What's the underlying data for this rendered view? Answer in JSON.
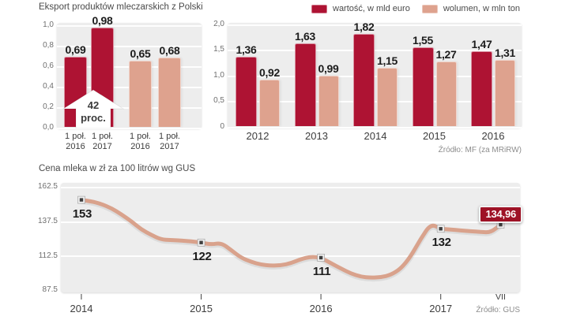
{
  "colors": {
    "value_red": "#ae1333",
    "volume_beige": "#dea28e",
    "line_beige": "#d9a28c",
    "badge_red": "#9e1226",
    "plot_bg": "#ededed"
  },
  "legend": [
    {
      "label": "wartość, w mld euro",
      "color": "#ae1333"
    },
    {
      "label": "wolumen, w mln ton",
      "color": "#dea28e"
    }
  ],
  "chart_data": [
    {
      "type": "bar",
      "title": "Eksport produktów mleczarskich z Polski",
      "ylim": [
        0,
        1.0
      ],
      "y_ticks": [
        "1,0",
        "0,8",
        "0,6",
        "0,4",
        "0,2",
        "0,0"
      ],
      "bars": [
        {
          "series": "wartość, w mld euro",
          "value": 0.69,
          "display": "0,69",
          "cat": [
            "1 poł.",
            "2016"
          ]
        },
        {
          "series": "wartość, w mld euro",
          "value": 0.98,
          "display": "0,98",
          "cat": [
            "1 poł.",
            "2017"
          ]
        },
        {
          "series": "wolumen, w mln ton",
          "value": 0.65,
          "display": "0,65",
          "cat": [
            "1 poł.",
            "2016"
          ]
        },
        {
          "series": "wolumen, w mln ton",
          "value": 0.68,
          "display": "0,68",
          "cat": [
            "1 poł.",
            "2017"
          ]
        }
      ],
      "annotation": {
        "lines": [
          "42",
          "proc."
        ]
      }
    },
    {
      "type": "bar",
      "categories": [
        "2012",
        "2013",
        "2014",
        "2015",
        "2016"
      ],
      "ylim": [
        0,
        2.0
      ],
      "y_ticks": [
        "2,0",
        "1,5",
        "1,0",
        "0,5",
        "0"
      ],
      "series": [
        {
          "name": "wartość, w mld euro",
          "values": [
            1.36,
            1.63,
            1.82,
            1.55,
            1.47
          ],
          "displays": [
            "1,36",
            "1,63",
            "1,82",
            "1,55",
            "1,47"
          ]
        },
        {
          "name": "wolumen, w mln ton",
          "values": [
            0.92,
            0.99,
            1.15,
            1.27,
            1.31
          ],
          "displays": [
            "0,92",
            "0,99",
            "1,15",
            "1,27",
            "1,31"
          ]
        }
      ],
      "legend": [
        {
          "label": "wartość, w mld euro"
        },
        {
          "label": "wolumen, w mln ton"
        }
      ],
      "source": "Źródło: MF (za MRiRW)"
    },
    {
      "type": "line",
      "title": "Cena mleka w zł za 100 litrów wg GUS",
      "ylim": [
        87.5,
        162.5
      ],
      "y_ticks": [
        "162.5",
        "137.5",
        "112.5",
        "87.5"
      ],
      "x_ticks": [
        {
          "month_index": 0,
          "roman": "I",
          "year": "2014"
        },
        {
          "month_index": 12,
          "roman": "I",
          "year": "2015"
        },
        {
          "month_index": 24,
          "roman": "I",
          "year": "2016"
        },
        {
          "month_index": 36,
          "roman": "I",
          "year": "2017"
        },
        {
          "month_index": 42,
          "roman": "VII",
          "year": ""
        }
      ],
      "series": [
        {
          "name": "cena mleka",
          "values": [
            153,
            152,
            150,
            147,
            142.5,
            137.5,
            131.5,
            127.5,
            124.2,
            123.8,
            123.4,
            122.8,
            122,
            120.6,
            121.8,
            116.5,
            111,
            108,
            106,
            105.2,
            105.5,
            107,
            110,
            111.8,
            111,
            107,
            103.2,
            99.5,
            97.2,
            96.5,
            96.8,
            98.5,
            103,
            112,
            124.7,
            135.6,
            132,
            131.4,
            130.8,
            130.2,
            129.7,
            129.3,
            134.96
          ]
        }
      ],
      "labeled_points": [
        {
          "month_index": 0,
          "display": "153"
        },
        {
          "month_index": 12,
          "display": "122"
        },
        {
          "month_index": 24,
          "display": "111"
        },
        {
          "month_index": 36,
          "display": "132"
        },
        {
          "month_index": 42,
          "display": "134,96",
          "highlight": true
        }
      ],
      "source": "Źródło: GUS"
    }
  ]
}
